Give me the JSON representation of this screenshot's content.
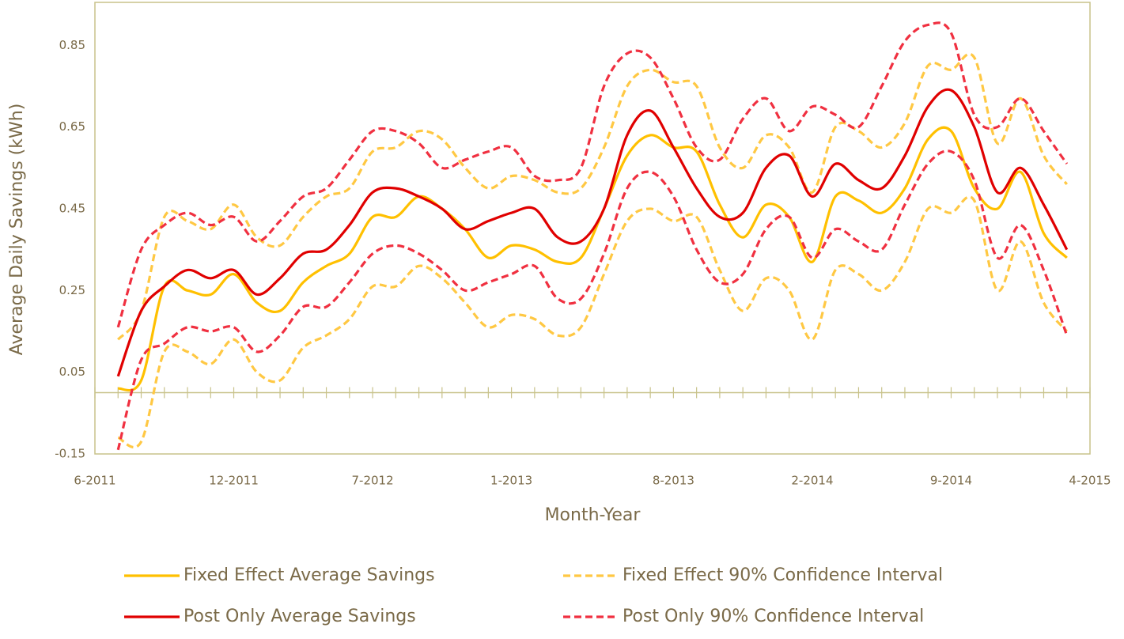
{
  "chart_data": {
    "type": "line",
    "y_label": "Average Daily Savings (kWh)",
    "x_label": "Month-Year",
    "categories": [
      "6-2011",
      null,
      null,
      null,
      null,
      null,
      "12-2011",
      null,
      null,
      null,
      null,
      null,
      "7-2012",
      null,
      null,
      null,
      null,
      null,
      "1-2013",
      null,
      null,
      null,
      null,
      null,
      null,
      "8-2013",
      null,
      null,
      null,
      null,
      null,
      "2-2014",
      null,
      null,
      null,
      null,
      null,
      "9-2014",
      null,
      null,
      null,
      null,
      null,
      "4-2015"
    ],
    "ylim": [
      -0.15,
      0.955
    ],
    "yticks": [
      -0.15,
      0.05,
      0.25,
      0.45,
      0.65,
      0.85
    ],
    "axis_color": "#c8c28a",
    "series": [
      {
        "name": "Fixed Effect Average Savings",
        "color": "#ffc000",
        "dashed": false,
        "values": [
          null,
          0.01,
          0.03,
          0.26,
          0.25,
          0.24,
          0.29,
          0.22,
          0.2,
          0.27,
          0.31,
          0.34,
          0.43,
          0.43,
          0.48,
          0.45,
          0.4,
          0.33,
          0.36,
          0.35,
          0.32,
          0.33,
          0.45,
          0.58,
          0.63,
          0.6,
          0.59,
          0.46,
          0.38,
          0.46,
          0.43,
          0.32,
          0.48,
          0.47,
          0.44,
          0.5,
          0.62,
          0.64,
          0.5,
          0.45,
          0.54,
          0.39,
          0.33,
          null
        ]
      },
      {
        "name": "Fixed Effect 90% Confidence Interval",
        "color": "#ffc843",
        "dashed": true,
        "upper": [
          null,
          0.13,
          0.2,
          0.43,
          0.42,
          0.4,
          0.46,
          0.38,
          0.36,
          0.43,
          0.48,
          0.5,
          0.59,
          0.6,
          0.64,
          0.62,
          0.55,
          0.5,
          0.53,
          0.52,
          0.49,
          0.5,
          0.6,
          0.75,
          0.79,
          0.76,
          0.75,
          0.6,
          0.55,
          0.63,
          0.6,
          0.49,
          0.65,
          0.64,
          0.6,
          0.66,
          0.8,
          0.79,
          0.82,
          0.61,
          0.72,
          0.58,
          0.51,
          null
        ],
        "lower": [
          null,
          -0.11,
          -0.12,
          0.1,
          0.1,
          0.07,
          0.13,
          0.05,
          0.03,
          0.11,
          0.14,
          0.18,
          0.26,
          0.26,
          0.31,
          0.28,
          0.22,
          0.16,
          0.19,
          0.18,
          0.14,
          0.16,
          0.29,
          0.42,
          0.45,
          0.42,
          0.43,
          0.3,
          0.2,
          0.28,
          0.25,
          0.13,
          0.3,
          0.29,
          0.25,
          0.32,
          0.45,
          0.44,
          0.47,
          0.25,
          0.37,
          0.22,
          0.15,
          null
        ]
      },
      {
        "name": "Post Only Average Savings",
        "color": "#e00000",
        "dashed": false,
        "values": [
          null,
          0.04,
          0.2,
          0.26,
          0.3,
          0.28,
          0.3,
          0.24,
          0.28,
          0.34,
          0.35,
          0.41,
          0.49,
          0.5,
          0.48,
          0.45,
          0.4,
          0.42,
          0.44,
          0.45,
          0.38,
          0.37,
          0.45,
          0.63,
          0.69,
          0.6,
          0.5,
          0.43,
          0.44,
          0.55,
          0.58,
          0.48,
          0.56,
          0.52,
          0.5,
          0.58,
          0.7,
          0.74,
          0.65,
          0.49,
          0.55,
          0.46,
          0.35,
          null
        ]
      },
      {
        "name": "Post Only 90% Confidence Interval",
        "color": "#f03040",
        "dashed": true,
        "upper": [
          null,
          0.16,
          0.35,
          0.41,
          0.44,
          0.41,
          0.43,
          0.37,
          0.42,
          0.48,
          0.5,
          0.57,
          0.64,
          0.64,
          0.61,
          0.55,
          0.57,
          0.59,
          0.6,
          0.53,
          0.52,
          0.55,
          0.75,
          0.83,
          0.82,
          0.72,
          0.6,
          0.57,
          0.67,
          0.72,
          0.64,
          0.7,
          0.68,
          0.65,
          0.75,
          0.86,
          0.9,
          0.88,
          0.68,
          0.65,
          0.72,
          0.64,
          0.56,
          null
        ],
        "lower": [
          null,
          -0.14,
          0.08,
          0.12,
          0.16,
          0.15,
          0.16,
          0.1,
          0.14,
          0.21,
          0.21,
          0.27,
          0.34,
          0.36,
          0.34,
          0.3,
          0.25,
          0.27,
          0.29,
          0.31,
          0.23,
          0.23,
          0.34,
          0.5,
          0.54,
          0.48,
          0.35,
          0.27,
          0.29,
          0.4,
          0.43,
          0.33,
          0.4,
          0.37,
          0.35,
          0.46,
          0.56,
          0.59,
          0.52,
          0.33,
          0.41,
          0.3,
          0.14,
          null
        ]
      }
    ]
  }
}
